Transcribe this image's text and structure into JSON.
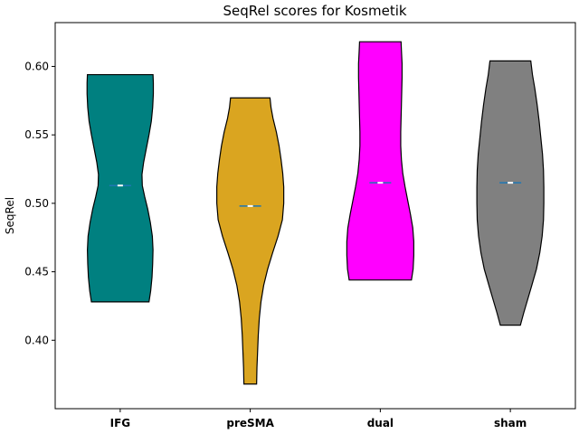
{
  "chart_data": {
    "type": "violin",
    "title": "SeqRel scores for Kosmetik",
    "xlabel": "",
    "ylabel": "SeqRel",
    "ylim": [
      0.35,
      0.632
    ],
    "yticks": [
      0.4,
      0.45,
      0.5,
      0.55,
      0.6
    ],
    "ytick_labels": [
      "0.40",
      "0.45",
      "0.50",
      "0.55",
      "0.60"
    ],
    "grid": false,
    "categories": [
      "IFG",
      "preSMA",
      "dual",
      "sham"
    ],
    "violins": [
      {
        "category": "IFG",
        "color": "#008080",
        "min": 0.428,
        "max": 0.594,
        "median": 0.513,
        "mean": 0.513,
        "profile": [
          [
            0.428,
            0.86
          ],
          [
            0.436,
            0.91
          ],
          [
            0.446,
            0.95
          ],
          [
            0.456,
            0.97
          ],
          [
            0.466,
            0.98
          ],
          [
            0.476,
            0.96
          ],
          [
            0.486,
            0.9
          ],
          [
            0.496,
            0.82
          ],
          [
            0.505,
            0.73
          ],
          [
            0.513,
            0.66
          ],
          [
            0.521,
            0.65
          ],
          [
            0.53,
            0.7
          ],
          [
            0.54,
            0.78
          ],
          [
            0.55,
            0.86
          ],
          [
            0.56,
            0.93
          ],
          [
            0.57,
            0.97
          ],
          [
            0.58,
            0.99
          ],
          [
            0.588,
            0.99
          ],
          [
            0.594,
            0.98
          ]
        ]
      },
      {
        "category": "preSMA",
        "color": "#daa520",
        "min": 0.368,
        "max": 0.577,
        "median": 0.498,
        "mean": 0.498,
        "profile": [
          [
            0.368,
            0.19
          ],
          [
            0.38,
            0.2
          ],
          [
            0.392,
            0.22
          ],
          [
            0.404,
            0.24
          ],
          [
            0.416,
            0.27
          ],
          [
            0.428,
            0.32
          ],
          [
            0.44,
            0.4
          ],
          [
            0.452,
            0.52
          ],
          [
            0.464,
            0.67
          ],
          [
            0.476,
            0.83
          ],
          [
            0.488,
            0.96
          ],
          [
            0.5,
            1.0
          ],
          [
            0.512,
            1.0
          ],
          [
            0.522,
            0.97
          ],
          [
            0.532,
            0.92
          ],
          [
            0.542,
            0.86
          ],
          [
            0.552,
            0.78
          ],
          [
            0.562,
            0.68
          ],
          [
            0.57,
            0.62
          ],
          [
            0.577,
            0.59
          ]
        ]
      },
      {
        "category": "dual",
        "color": "#ff00ff",
        "min": 0.444,
        "max": 0.618,
        "median": 0.515,
        "mean": 0.515,
        "profile": [
          [
            0.444,
            0.93
          ],
          [
            0.452,
            0.98
          ],
          [
            0.462,
            1.0
          ],
          [
            0.472,
            1.0
          ],
          [
            0.482,
            0.97
          ],
          [
            0.492,
            0.9
          ],
          [
            0.502,
            0.82
          ],
          [
            0.512,
            0.74
          ],
          [
            0.522,
            0.67
          ],
          [
            0.532,
            0.63
          ],
          [
            0.542,
            0.61
          ],
          [
            0.552,
            0.61
          ],
          [
            0.562,
            0.62
          ],
          [
            0.572,
            0.63
          ],
          [
            0.582,
            0.64
          ],
          [
            0.592,
            0.65
          ],
          [
            0.602,
            0.65
          ],
          [
            0.612,
            0.63
          ],
          [
            0.618,
            0.62
          ]
        ]
      },
      {
        "category": "sham",
        "color": "#808080",
        "min": 0.411,
        "max": 0.604,
        "median": 0.515,
        "mean": 0.515,
        "profile": [
          [
            0.411,
            0.3
          ],
          [
            0.42,
            0.4
          ],
          [
            0.43,
            0.52
          ],
          [
            0.44,
            0.64
          ],
          [
            0.452,
            0.78
          ],
          [
            0.464,
            0.88
          ],
          [
            0.476,
            0.95
          ],
          [
            0.488,
            0.99
          ],
          [
            0.5,
            1.0
          ],
          [
            0.512,
            1.0
          ],
          [
            0.524,
            0.99
          ],
          [
            0.536,
            0.96
          ],
          [
            0.548,
            0.91
          ],
          [
            0.56,
            0.86
          ],
          [
            0.572,
            0.8
          ],
          [
            0.584,
            0.73
          ],
          [
            0.594,
            0.66
          ],
          [
            0.604,
            0.61
          ]
        ]
      }
    ]
  }
}
